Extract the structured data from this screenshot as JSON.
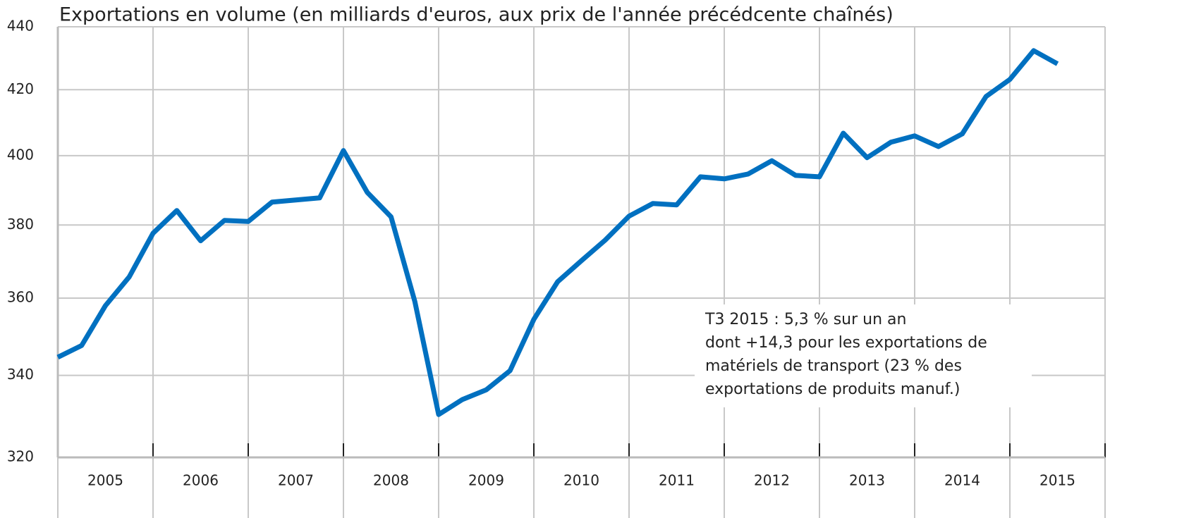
{
  "chart_data": {
    "type": "line",
    "title": "Exportations en volume (en milliards d'euros, aux prix de l'année précédcente chaînés)",
    "year_labels": [
      "2005",
      "2006",
      "2007",
      "2008",
      "2009",
      "2010",
      "2011",
      "2012",
      "2013",
      "2014",
      "2015"
    ],
    "series": [
      {
        "color": "#0070c0",
        "values": [
          344.6,
          347.6,
          358.0,
          365.7,
          377.7,
          384.1,
          375.6,
          381.3,
          381.0,
          386.5,
          387.1,
          387.7,
          401.5,
          389.3,
          382.3,
          359.1,
          330.3,
          334.0,
          336.4,
          341.2,
          354.4,
          364.4,
          370.1,
          375.8,
          382.5,
          386.1,
          385.7,
          393.8,
          393.2,
          394.6,
          398.5,
          394.2,
          393.8,
          406.7,
          399.4,
          404.0,
          405.9,
          402.7,
          406.5,
          417.9,
          423.2,
          432.3,
          428.1
        ]
      }
    ],
    "ylim": [
      320,
      440
    ],
    "yticks": [
      320,
      340,
      360,
      380,
      400,
      420,
      440
    ],
    "log_y": true,
    "grid": true,
    "annotation": [
      "T3 2015 : 5,3 % sur un an",
      "dont +14,3 pour les exportations de",
      "matériels de transport (23 % des",
      "exportations de produits manuf.)"
    ]
  }
}
